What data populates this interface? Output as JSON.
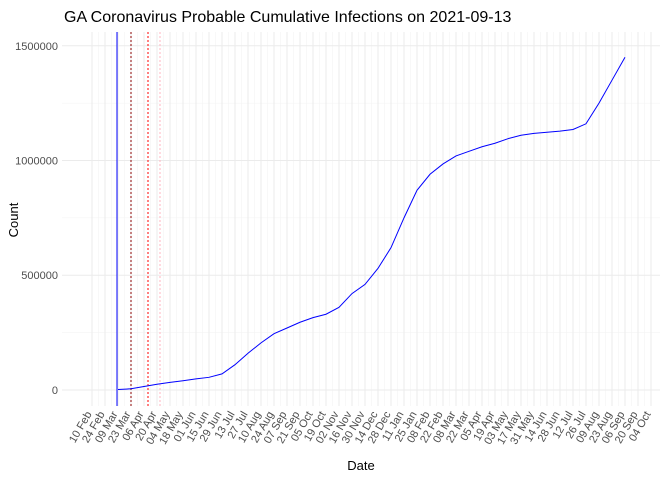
{
  "chart_data": {
    "type": "line",
    "title": "GA Coronavirus Probable Cumulative Infections on 2021-09-13",
    "x_label": "Date",
    "y_label": "Count",
    "categories": [
      "10 Feb",
      "24 Feb",
      "09 Mar",
      "23 Mar",
      "06 Apr",
      "20 Apr",
      "04 May",
      "18 May",
      "01 Jun",
      "15 Jun",
      "29 Jun",
      "13 Jul",
      "27 Jul",
      "10 Aug",
      "24 Aug",
      "07 Sep",
      "21 Sep",
      "05 Oct",
      "19 Oct",
      "02 Nov",
      "16 Nov",
      "30 Nov",
      "14 Dec",
      "28 Dec",
      "11 Jan",
      "25 Jan",
      "08 Feb",
      "22 Feb",
      "08 Mar",
      "22 Mar",
      "05 Apr",
      "19 Apr",
      "03 May",
      "17 May",
      "31 May",
      "14 Jun",
      "28 Jun",
      "12 Jul",
      "26 Jul",
      "09 Aug",
      "23 Aug",
      "06 Sep",
      "20 Sep",
      "04 Oct"
    ],
    "series": [
      {
        "color": "#0000ff",
        "values": [
          null,
          null,
          2000,
          5000,
          15000,
          25000,
          33000,
          40000,
          48000,
          55000,
          70000,
          110000,
          160000,
          205000,
          245000,
          270000,
          295000,
          315000,
          330000,
          360000,
          420000,
          460000,
          530000,
          620000,
          750000,
          870000,
          940000,
          985000,
          1020000,
          1040000,
          1060000,
          1075000,
          1095000,
          1110000,
          1118000,
          1123000,
          1128000,
          1135000,
          1160000,
          1250000,
          1350000,
          1450000,
          null,
          null
        ]
      }
    ],
    "ylim": [
      -70000,
      1560000
    ],
    "yticks": [
      0,
      500000,
      1000000,
      1500000
    ],
    "grid": true
  }
}
